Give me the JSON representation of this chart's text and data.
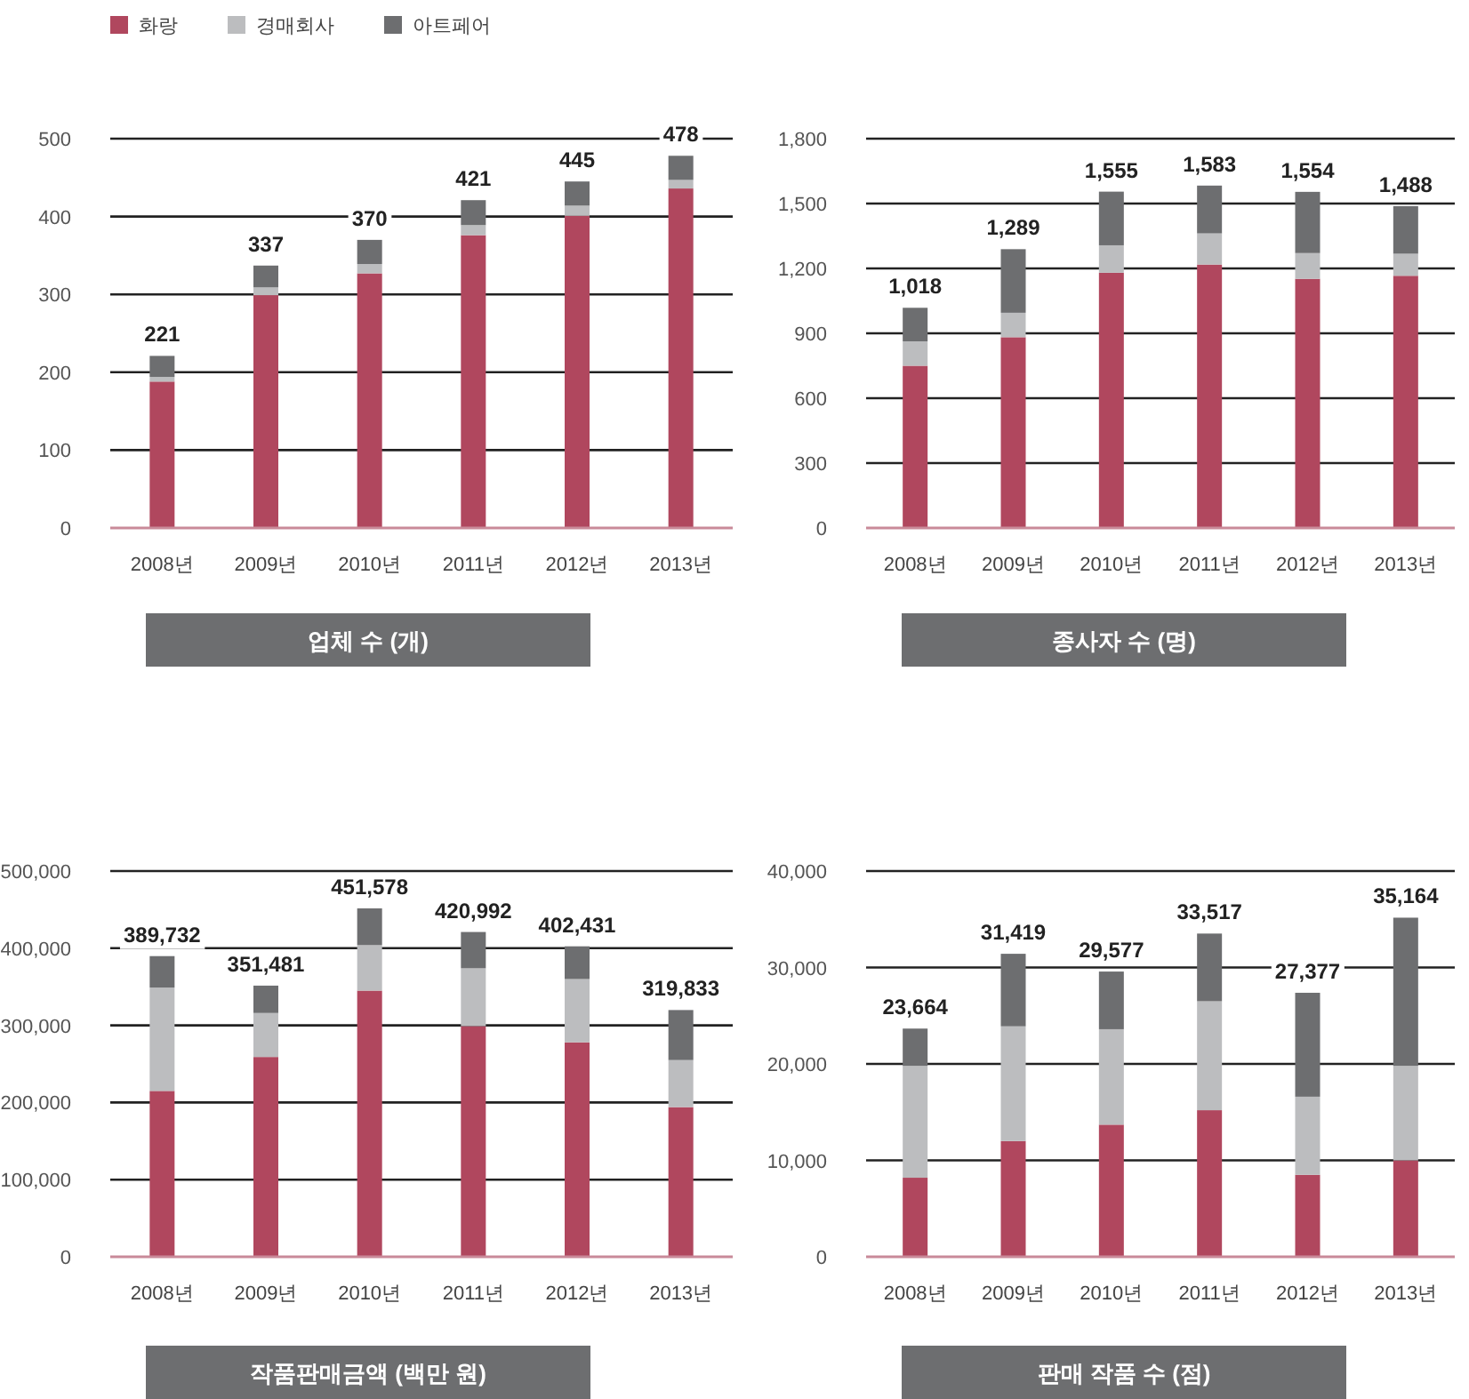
{
  "chart_data": [
    {
      "type": "bar",
      "stacked": true,
      "title": "업체 수 (개)",
      "legend": "top left",
      "grid": "y",
      "categories": [
        "2008년",
        "2009년",
        "2010년",
        "2011년",
        "2012년",
        "2013년"
      ],
      "ylim": [
        0,
        500
      ],
      "yticks": [
        0,
        100,
        200,
        300,
        400,
        500
      ],
      "series": [
        {
          "name": "화랑",
          "color": "#b0475e",
          "values": [
            188,
            299,
            327,
            376,
            401,
            436
          ]
        },
        {
          "name": "경매회사",
          "color": "#bcbdbf",
          "values": [
            6,
            10,
            12,
            13,
            13,
            11
          ]
        },
        {
          "name": "아트페어",
          "color": "#6d6e70",
          "values": [
            27,
            28,
            31,
            32,
            31,
            31
          ]
        }
      ],
      "totals": [
        "221",
        "337",
        "370",
        "421",
        "445",
        "478"
      ]
    },
    {
      "type": "bar",
      "stacked": true,
      "title": "종사자 수 (명)",
      "grid": "y",
      "categories": [
        "2008년",
        "2009년",
        "2010년",
        "2011년",
        "2012년",
        "2013년"
      ],
      "ylim": [
        0,
        1800
      ],
      "yticks": [
        0,
        300,
        600,
        900,
        {
          "value": 1200,
          "label": "1,200"
        },
        {
          "value": 1500,
          "label": "1,500"
        },
        {
          "value": 1800,
          "label": "1,800"
        }
      ],
      "series": [
        {
          "color": "#b0475e",
          "values": [
            750,
            882,
            1180,
            1218,
            1152,
            1166
          ]
        },
        {
          "color": "#bcbdbf",
          "values": [
            113,
            113,
            127,
            144,
            119,
            102
          ]
        },
        {
          "color": "#6d6e70",
          "values": [
            155,
            294,
            248,
            221,
            283,
            220
          ]
        }
      ],
      "totals": [
        "1,018",
        "1,289",
        "1,555",
        "1,583",
        "1,554",
        "1,488"
      ]
    },
    {
      "type": "bar",
      "stacked": true,
      "title": "작품판매금액 (백만 원)",
      "grid": "y",
      "categories": [
        "2008년",
        "2009년",
        "2010년",
        "2011년",
        "2012년",
        "2013년"
      ],
      "ylim": [
        0,
        500000
      ],
      "yticks": [
        0,
        {
          "value": 100000,
          "label": "100,000"
        },
        {
          "value": 200000,
          "label": "200,000"
        },
        {
          "value": 300000,
          "label": "300,000"
        },
        {
          "value": 400000,
          "label": "400,000"
        },
        {
          "value": 500000,
          "label": "500,000"
        }
      ],
      "series": [
        {
          "color": "#b0475e",
          "values": [
            215000,
            259000,
            345000,
            299000,
            278000,
            194000
          ]
        },
        {
          "color": "#bcbdbf",
          "values": [
            134000,
            57000,
            59000,
            75000,
            82000,
            61000
          ]
        },
        {
          "color": "#6d6e70",
          "values": [
            40732,
            35481,
            47578,
            46992,
            42431,
            64833
          ]
        }
      ],
      "totals": [
        "389,732",
        "351,481",
        "451,578",
        "420,992",
        "402,431",
        "319,833"
      ]
    },
    {
      "type": "bar",
      "stacked": true,
      "title": "판매 작품 수 (점)",
      "grid": "y",
      "categories": [
        "2008년",
        "2009년",
        "2010년",
        "2011년",
        "2012년",
        "2013년"
      ],
      "ylim": [
        0,
        40000
      ],
      "yticks": [
        0,
        {
          "value": 10000,
          "label": "10,000"
        },
        {
          "value": 20000,
          "label": "20,000"
        },
        {
          "value": 30000,
          "label": "30,000"
        },
        {
          "value": 40000,
          "label": "40,000"
        }
      ],
      "series": [
        {
          "color": "#b0475e",
          "values": [
            8200,
            12000,
            13700,
            15200,
            8500,
            10000
          ]
        },
        {
          "color": "#bcbdbf",
          "values": [
            11600,
            11900,
            9900,
            11300,
            8100,
            9800
          ]
        },
        {
          "color": "#6d6e70",
          "values": [
            3864,
            7519,
            5977,
            7017,
            10777,
            15364
          ]
        }
      ],
      "totals": [
        "23,664",
        "31,419",
        "29,577",
        "33,517",
        "27,377",
        "35,164"
      ]
    }
  ]
}
